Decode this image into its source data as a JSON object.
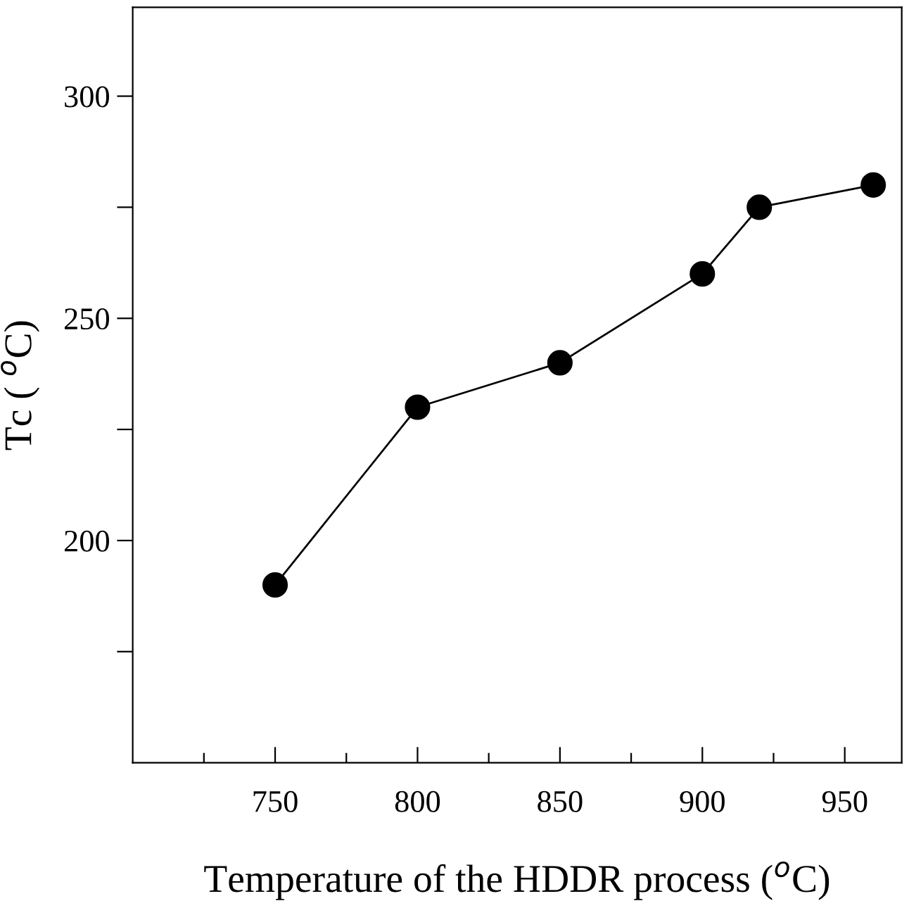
{
  "chart_data": {
    "type": "line",
    "xlabel": "Temperature of the HDDR process ($^{o}$C)",
    "ylabel": "Tc ( $^{o}$C)",
    "x": [
      750,
      800,
      850,
      900,
      920,
      960
    ],
    "series": [
      {
        "color": "#000000",
        "values": [
          190,
          230,
          240,
          260,
          275,
          280
        ]
      }
    ],
    "marker": "circle",
    "line_style": "solid",
    "grid": false,
    "legend": false,
    "xlim": [
      700,
      970
    ],
    "xticks": [
      {
        "value": 725,
        "label": null
      },
      750,
      {
        "value": 775,
        "label": null
      },
      800,
      {
        "value": 825,
        "label": null
      },
      850,
      {
        "value": 875,
        "label": null
      },
      900,
      {
        "value": 925,
        "label": null
      },
      950
    ],
    "ylim": [
      150,
      320
    ],
    "yticks": [
      {
        "value": 175,
        "label": null
      },
      200,
      {
        "value": 225,
        "label": null
      },
      250,
      {
        "value": 275,
        "label": null
      },
      300
    ]
  }
}
